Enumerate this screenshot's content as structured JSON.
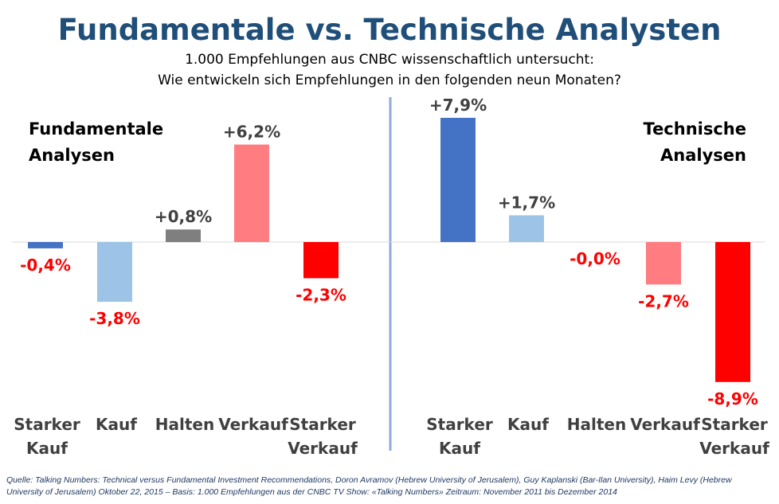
{
  "chart_data": [
    {
      "type": "bar",
      "title": "Fundamentale vs. Technische Analysten",
      "subtitle": [
        "1.000 Empfehlungen aus CNBC wissenschaftlich untersucht:",
        "Wie entwickeln sich Empfehlungen in den folgenden neun Monaten?"
      ],
      "section_label": [
        "Fundamentale",
        "Analysen"
      ],
      "categories": [
        [
          "Starker",
          "Kauf"
        ],
        [
          "Kauf"
        ],
        [
          "Halten"
        ],
        [
          "Verkauf"
        ],
        [
          "Starker",
          "Verkauf"
        ]
      ],
      "values": [
        -0.4,
        -3.8,
        0.8,
        6.2,
        -2.3
      ],
      "labels": [
        "-0,4%",
        "-3,8%",
        "+0,8%",
        "+6,2%",
        "-2,3%"
      ],
      "colors": [
        "#4472C4",
        "#9DC3E6",
        "#7F7F7F",
        "#FF7C80",
        "#FF0000"
      ],
      "unit": "%"
    },
    {
      "type": "bar",
      "section_label": [
        "Technische",
        "Analysen"
      ],
      "categories": [
        [
          "Starker",
          "Kauf"
        ],
        [
          "Kauf"
        ],
        [
          "Halten"
        ],
        [
          "Verkauf"
        ],
        [
          "Starker",
          "Verkauf"
        ]
      ],
      "values": [
        7.9,
        1.7,
        -0.0,
        -2.7,
        -8.9
      ],
      "labels": [
        "+7,9%",
        "+1,7%",
        "-0,0%",
        "-2,7%",
        "-8,9%"
      ],
      "colors": [
        "#4472C4",
        "#9DC3E6",
        "#7F7F7F",
        "#FF7C80",
        "#FF0000"
      ],
      "unit": "%"
    }
  ],
  "colors": {
    "title": "#1F4E79",
    "positive_label": "#404040",
    "negative_label": "#FF0000",
    "divider": "#8FAADC"
  },
  "source": [
    "Quelle: Talking Numbers: Technical versus Fundamental Investment Recommendations, Doron Avramov (Hebrew University of Jerusalem), Guy Kaplanski (Bar-Ilan University), Haim Levy (Hebrew",
    "University of Jerusalem) Oktober 22, 2015 – Basis: 1.000 Empfehlungen aus der CNBC TV Show: «Talking Numbers» Zeitraum: November 2011 bis Dezember 2014"
  ]
}
